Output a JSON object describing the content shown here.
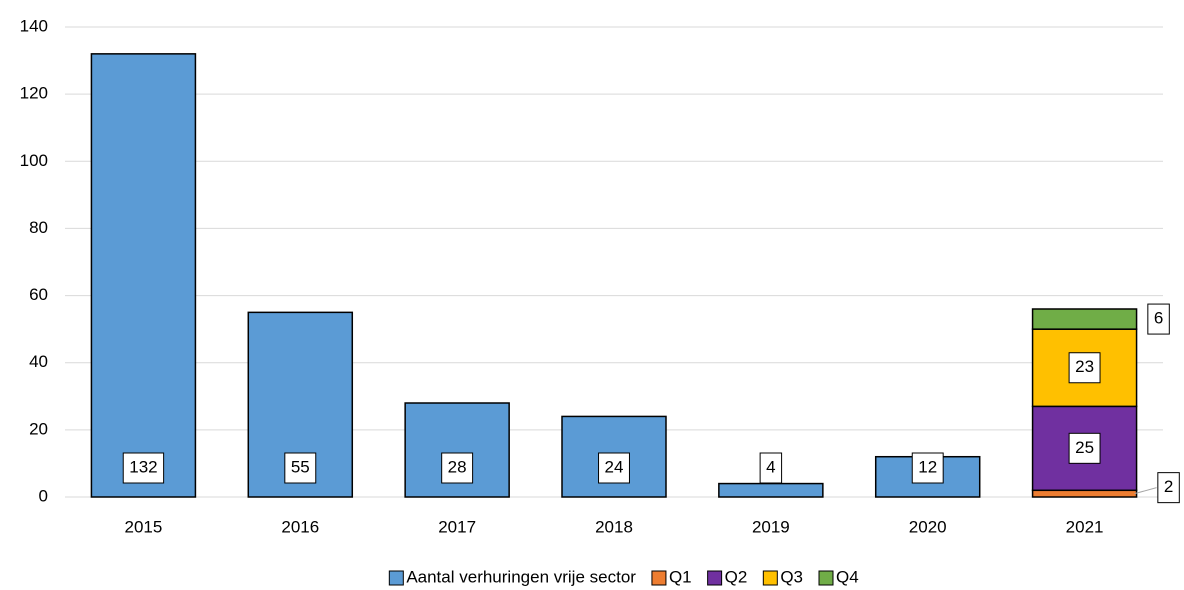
{
  "chart_data": {
    "type": "stacked_bar",
    "categories": [
      "2015",
      "2016",
      "2017",
      "2018",
      "2019",
      "2020",
      "2021"
    ],
    "series": [
      {
        "name": "Aantal verhuringen vrije sector",
        "color": "#5b9bd5",
        "values": [
          132,
          55,
          28,
          24,
          4,
          12,
          null
        ]
      },
      {
        "name": "Q1",
        "color": "#ed7d31",
        "values": [
          null,
          null,
          null,
          null,
          null,
          null,
          2
        ]
      },
      {
        "name": "Q2",
        "color": "#7030a0",
        "values": [
          null,
          null,
          null,
          null,
          null,
          null,
          25
        ]
      },
      {
        "name": "Q3",
        "color": "#ffc000",
        "values": [
          null,
          null,
          null,
          null,
          null,
          null,
          23
        ]
      },
      {
        "name": "Q4",
        "color": "#70ad47",
        "values": [
          null,
          null,
          null,
          null,
          null,
          null,
          6
        ]
      }
    ],
    "ylim": [
      0,
      140
    ],
    "yticks": [
      0,
      20,
      40,
      60,
      80,
      100,
      120,
      140
    ],
    "grid": true,
    "legend": "bottom"
  }
}
